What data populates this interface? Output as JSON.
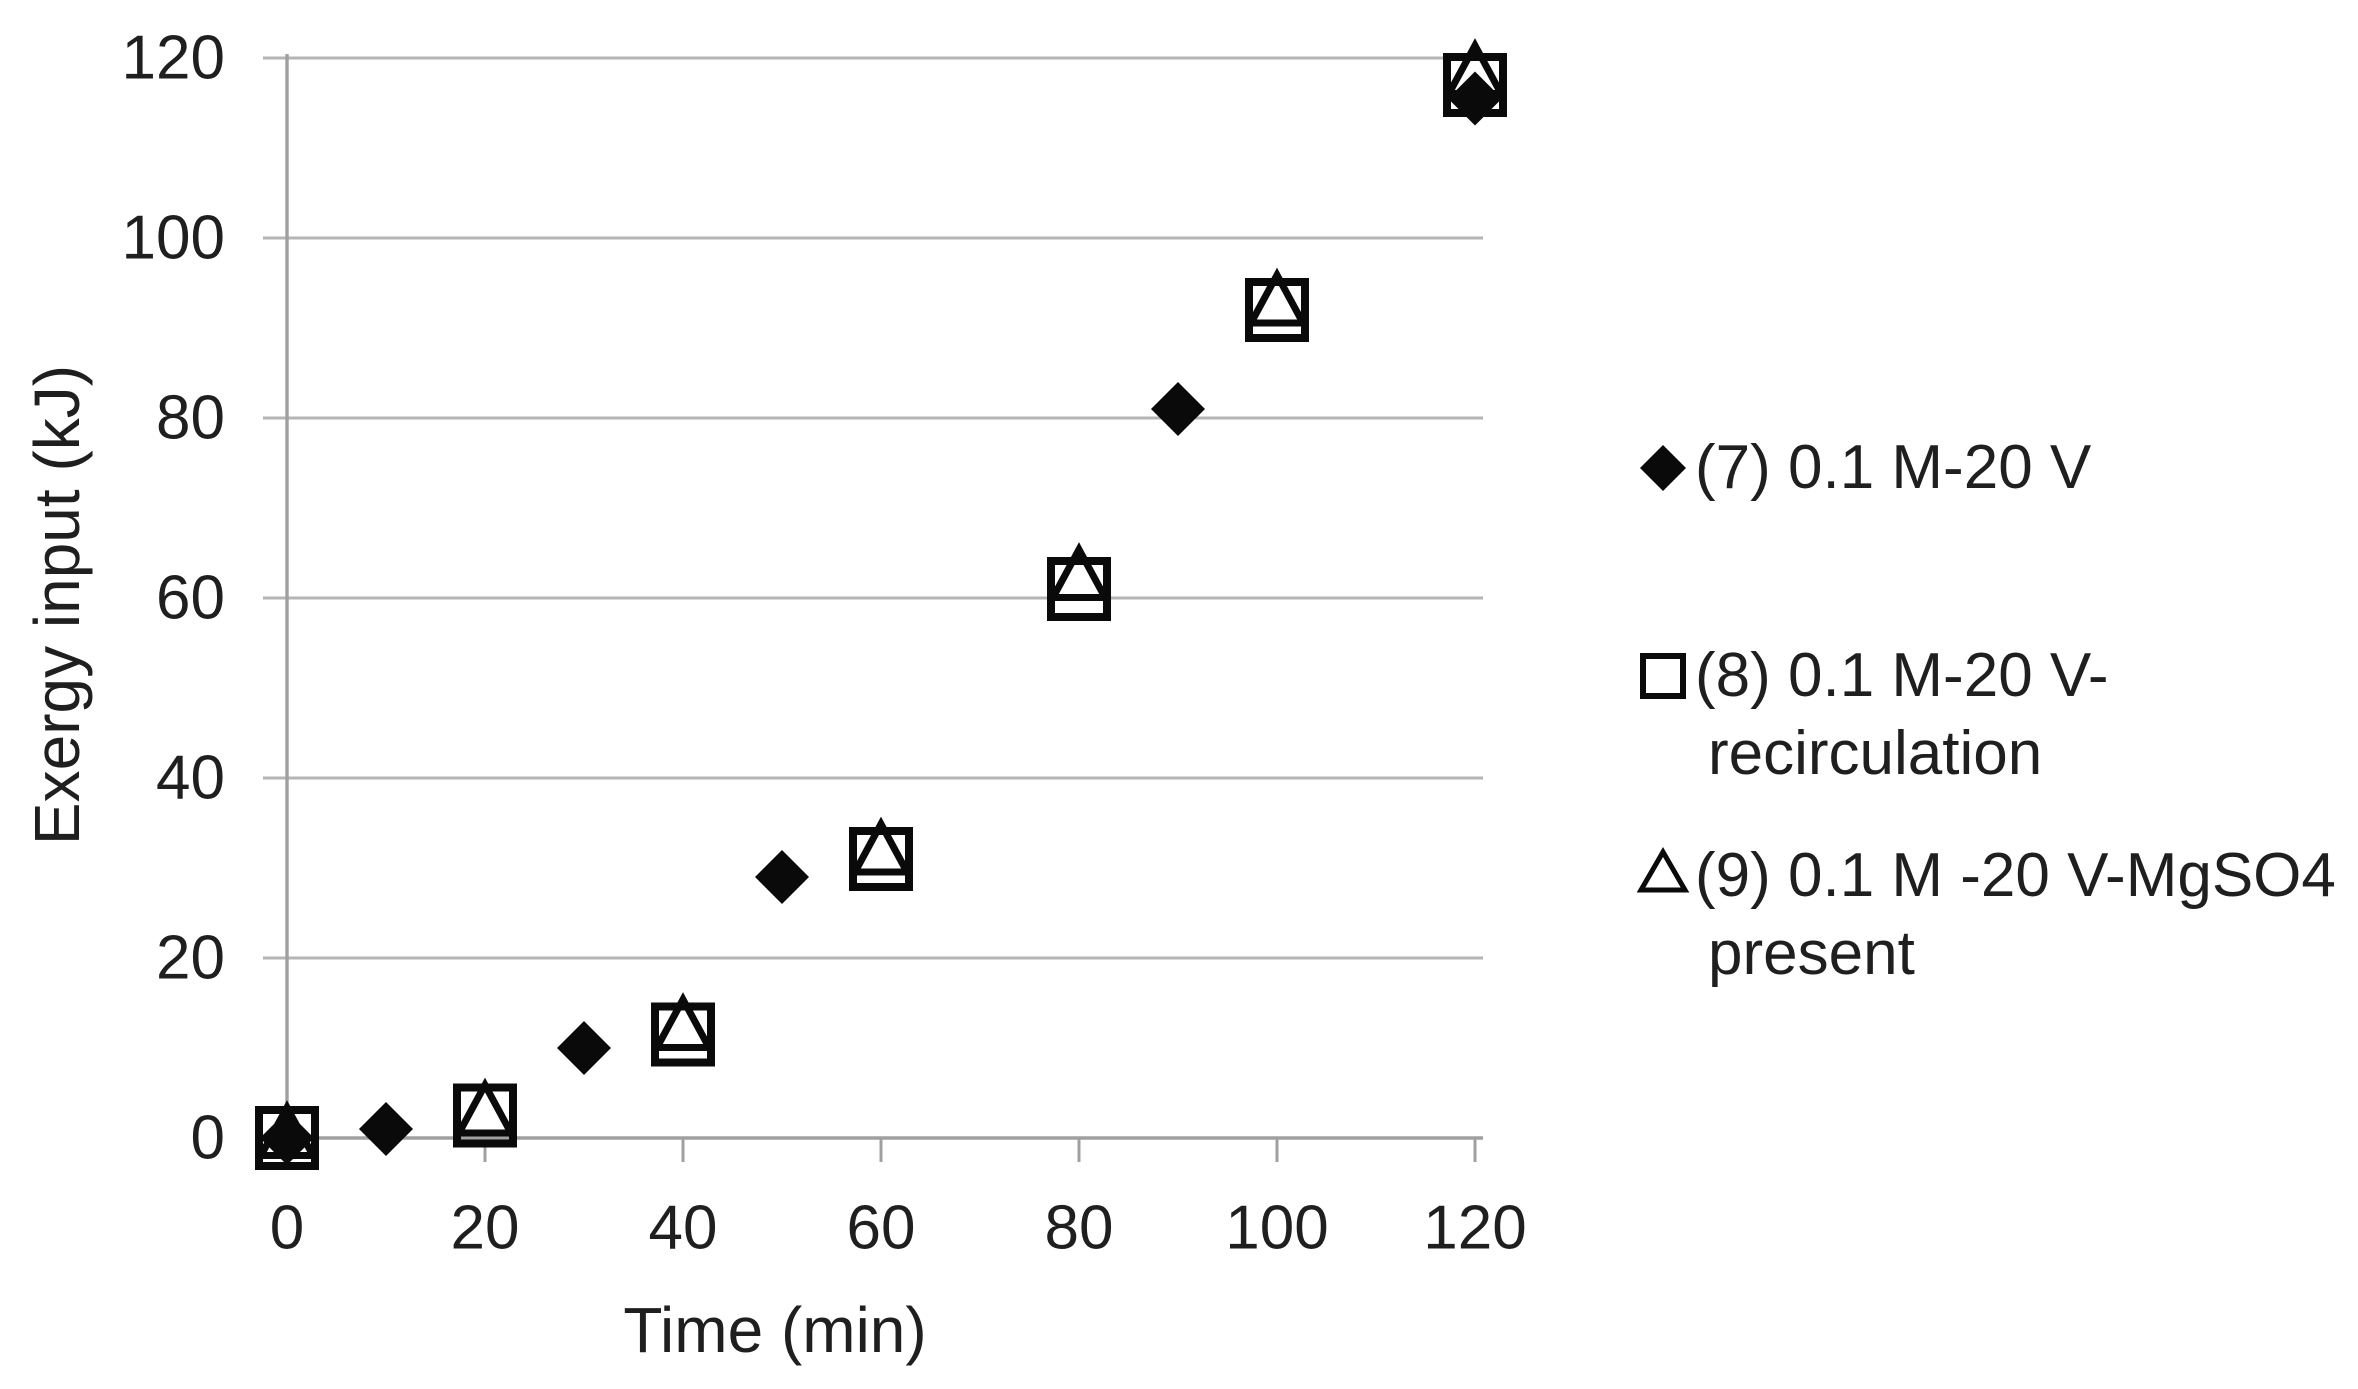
{
  "chart_data": {
    "type": "scatter",
    "title": "",
    "xlabel": "Time (min)",
    "ylabel": "Exergy input (kJ)",
    "xlim": [
      0,
      120
    ],
    "ylim": [
      0,
      120
    ],
    "xticks": [
      0,
      20,
      40,
      60,
      80,
      100,
      120
    ],
    "yticks": [
      0,
      20,
      40,
      60,
      80,
      100,
      120
    ],
    "grid": "horizontal-only",
    "legend_position": "right",
    "series": [
      {
        "id": "s7",
        "name": "(7) 0.1 M-20 V",
        "marker": "filled-diamond",
        "points": [
          [
            0,
            0
          ],
          [
            10,
            1
          ],
          [
            30,
            10
          ],
          [
            50,
            29
          ],
          [
            90,
            81
          ],
          [
            120,
            115.5
          ]
        ]
      },
      {
        "id": "s8",
        "name": "(8) 0.1 M-20 V-recirculation",
        "marker": "open-square",
        "points": [
          [
            0,
            0
          ],
          [
            20,
            2.5
          ],
          [
            40,
            11.5
          ],
          [
            60,
            31
          ],
          [
            80,
            61
          ],
          [
            100,
            92
          ],
          [
            120,
            117
          ]
        ]
      },
      {
        "id": "s9",
        "name": "(9) 0.1 M -20 V-MgSO4 present",
        "marker": "open-triangle",
        "points": [
          [
            0,
            0.5
          ],
          [
            20,
            3
          ],
          [
            40,
            12.5
          ],
          [
            60,
            32
          ],
          [
            80,
            62.5
          ],
          [
            100,
            93
          ],
          [
            120,
            118.5
          ]
        ]
      }
    ]
  },
  "legend": {
    "entries": [
      {
        "marker": "filled-diamond",
        "line1": "(7) 0.1 M-20 V",
        "line2": ""
      },
      {
        "marker": "open-square",
        "line1": "(8) 0.1 M-20 V-",
        "line2": "recirculation"
      },
      {
        "marker": "open-triangle",
        "line1": "(9) 0.1 M -20 V-MgSO4",
        "line2": "present"
      }
    ]
  },
  "colors": {
    "marker": "#0a0a0a",
    "text": "#1f1f1f",
    "gridline": "#b5b5b5",
    "axis": "#a0a0a0",
    "background": "#ffffff"
  }
}
